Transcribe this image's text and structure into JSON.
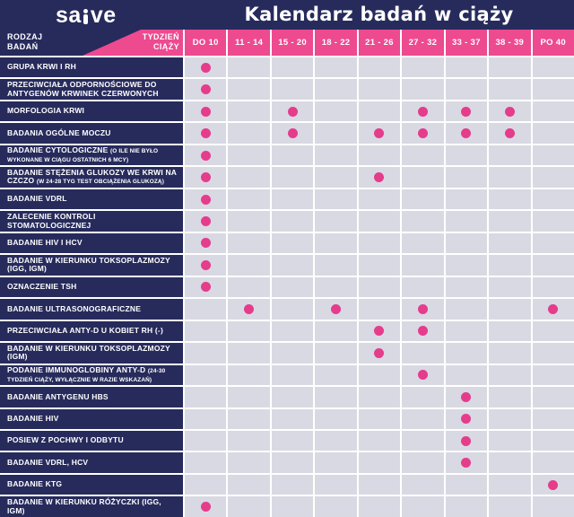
{
  "brand": {
    "part1": "sa",
    "part2": "ve",
    "mark": "i-dot-mark"
  },
  "header": {
    "title": "Kalendarz badań w ciąży",
    "row_axis_label": "RODZAJ\nBADAŃ",
    "col_axis_label": "TYDZIEŃ\nCIĄŻY"
  },
  "colors": {
    "navy": "#272b5c",
    "pink_band": "#ed4a90",
    "dot_pink": "#e53c8b",
    "cell_bg": "#d9d9e3",
    "grid_line": "#ffffff",
    "text_on_dark": "#ffffff"
  },
  "chart_data": {
    "type": "table",
    "title": "Kalendarz badań w ciąży",
    "row_axis_label": "RODZAJ BADAŃ",
    "col_axis_label": "TYDZIEŃ CIĄŻY",
    "columns": [
      "DO 10",
      "11 - 14",
      "15 - 20",
      "18 - 22",
      "21 - 26",
      "27 - 32",
      "33 - 37",
      "38 - 39",
      "PO 40"
    ],
    "marker": "pink-dot",
    "rows": [
      {
        "label": "GRUPA KRWI I RH",
        "note": "",
        "dot_columns": [
          0
        ]
      },
      {
        "label": "PRZECIWCIAŁA ODPORNOŚCIOWE DO ANTYGENÓW KRWINEK CZERWONYCH",
        "note": "",
        "dot_columns": [
          0
        ]
      },
      {
        "label": "MORFOLOGIA KRWI",
        "note": "",
        "dot_columns": [
          0,
          2,
          5,
          6,
          7
        ]
      },
      {
        "label": "BADANIA OGÓLNE MOCZU",
        "note": "",
        "dot_columns": [
          0,
          2,
          4,
          5,
          6,
          7
        ]
      },
      {
        "label": "BADANIE CYTOLOGICZNE",
        "note": "(O ILE NIE BYŁO WYKONANE W CIĄGU OSTATNICH 6 MCY)",
        "dot_columns": [
          0
        ]
      },
      {
        "label": "BADANIE STĘŻENIA GLUKOZY WE KRWI NA CZCZO",
        "note": "(W 24-28 TYG TEST OBCIĄŻENIA GLUKOZĄ)",
        "dot_columns": [
          0,
          4
        ]
      },
      {
        "label": "BADANIE VDRL",
        "note": "",
        "dot_columns": [
          0
        ]
      },
      {
        "label": "ZALECENIE KONTROLI STOMATOLOGICZNEJ",
        "note": "",
        "dot_columns": [
          0
        ]
      },
      {
        "label": "BADANIE HIV I HCV",
        "note": "",
        "dot_columns": [
          0
        ]
      },
      {
        "label": "BADANIE W KIERUNKU TOKSOPLAZMOZY (IGG, IGM)",
        "note": "",
        "dot_columns": [
          0
        ]
      },
      {
        "label": "OZNACZENIE TSH",
        "note": "",
        "dot_columns": [
          0
        ]
      },
      {
        "label": "BADANIE ULTRASONOGRAFICZNE",
        "note": "",
        "dot_columns": [
          1,
          3,
          5,
          8
        ]
      },
      {
        "label": "PRZECIWCIAŁA ANTY-D U KOBIET RH (-)",
        "note": "",
        "dot_columns": [
          4,
          5
        ]
      },
      {
        "label": "BADANIE W KIERUNKU TOKSOPLAZMOZY (IGM)",
        "note": "",
        "dot_columns": [
          4
        ]
      },
      {
        "label": "PODANIE IMMUNOGLOBINY ANTY-D",
        "note": "(24-30 TYDZIEŃ CIĄŻY, WYŁĄCZNIE W RAZIE WSKAZAŃ)",
        "dot_columns": [
          5
        ]
      },
      {
        "label": "BADANIE ANTYGENU HBS",
        "note": "",
        "dot_columns": [
          6
        ]
      },
      {
        "label": "BADANIE HIV",
        "note": "",
        "dot_columns": [
          6
        ]
      },
      {
        "label": "POSIEW Z POCHWY I ODBYTU",
        "note": "",
        "dot_columns": [
          6
        ]
      },
      {
        "label": "BADANIE VDRL, HCV",
        "note": "",
        "dot_columns": [
          6
        ]
      },
      {
        "label": "BADANIE KTG",
        "note": "",
        "dot_columns": [
          8
        ]
      },
      {
        "label": "BADANIE W KIERUNKU RÓŻYCZKI (IGG, IGM)",
        "note": "",
        "dot_columns": [
          0
        ]
      }
    ]
  }
}
